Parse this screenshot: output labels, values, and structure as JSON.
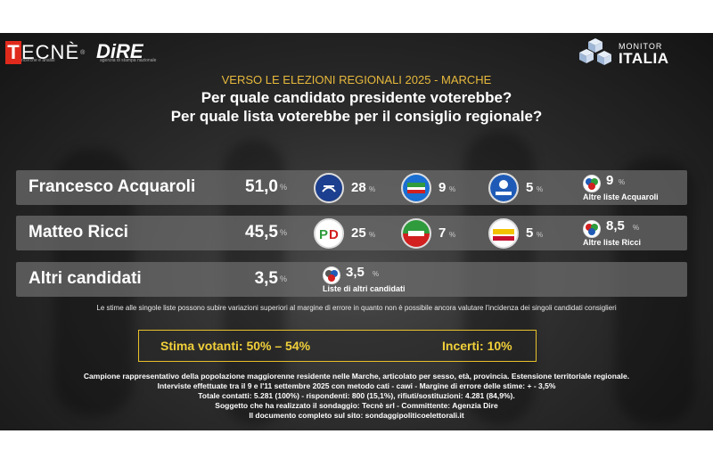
{
  "header": {
    "tecne_logo": {
      "initial": "T",
      "rest": "ECNÈ",
      "registered": "®",
      "tagline": "ricerche e analisi"
    },
    "dire_logo": {
      "text": "DiRE",
      "tagline": "agenzia di stampa nazionale"
    },
    "monitor_logo": {
      "top": "MONITOR",
      "bottom": "ITALIA"
    }
  },
  "chart_data": {
    "type": "table",
    "kicker": "VERSO LE ELEZIONI REGIONALI 2025 - MARCHE",
    "questions": [
      "Per quale candidato presidente voterebbe?",
      "Per quale lista voterebbe per il consiglio regionale?"
    ],
    "unit": "%",
    "candidates": [
      {
        "name": "Francesco Acquaroli",
        "value": "51,0",
        "lists": [
          {
            "logo": "fratelli-d-italia-logo",
            "value": "28",
            "color": "#1c3f8f"
          },
          {
            "logo": "forza-italia-logo",
            "value": "9",
            "color": "#1a6fd1"
          },
          {
            "logo": "lega-salvini-logo",
            "value": "5",
            "color": "#1f5bb6"
          }
        ],
        "other": {
          "logo": "altre-liste-acquaroli-logo",
          "value": "9",
          "label": "Altre liste Acquaroli"
        }
      },
      {
        "name": "Matteo Ricci",
        "value": "45,5",
        "lists": [
          {
            "logo": "partito-democratico-logo",
            "value": "25",
            "color": "#d21f1f"
          },
          {
            "logo": "avs-logo",
            "value": "7",
            "color": "#2f9b3c"
          },
          {
            "logo": "movimento-5-stelle-logo",
            "value": "5",
            "color": "#c8102e"
          }
        ],
        "other": {
          "logo": "altre-liste-ricci-logo",
          "value": "8,5",
          "label": "Altre liste Ricci"
        }
      },
      {
        "name": "Altri candidati",
        "value": "3,5",
        "lists": [],
        "other": {
          "logo": "liste-altri-candidati-logo",
          "value": "3,5",
          "label": "Liste di altri candidati"
        }
      }
    ],
    "note": "Le stime alle singole liste possono subire variazioni superiori al margine di errore in quanto non è possibile ancora valutare l'incidenza dei singoli candidati consiglieri",
    "stima": "Stima votanti: 50% – 54%",
    "incerti": "Incerti: 10%",
    "methodology": [
      "Campione rappresentativo della popolazione maggiorenne residente nelle Marche, articolato per sesso, età, provincia. Estensione territoriale regionale.",
      "Interviste effettuate tra il 9 e l'11 settembre 2025 con metodo cati - cawi - Margine di errore delle stime: + - 3,5%",
      "Totale contatti: 5.281 (100%) - rispondenti: 800 (15,1%), rifiuti/sostituzioni: 4.281 (84,9%).",
      "Soggetto che ha realizzato il sondaggio: Tecnè srl - Committente: Agenzia Dire",
      "Il documento completo sul sito: sondaggipoliticoelettorali.it"
    ]
  }
}
